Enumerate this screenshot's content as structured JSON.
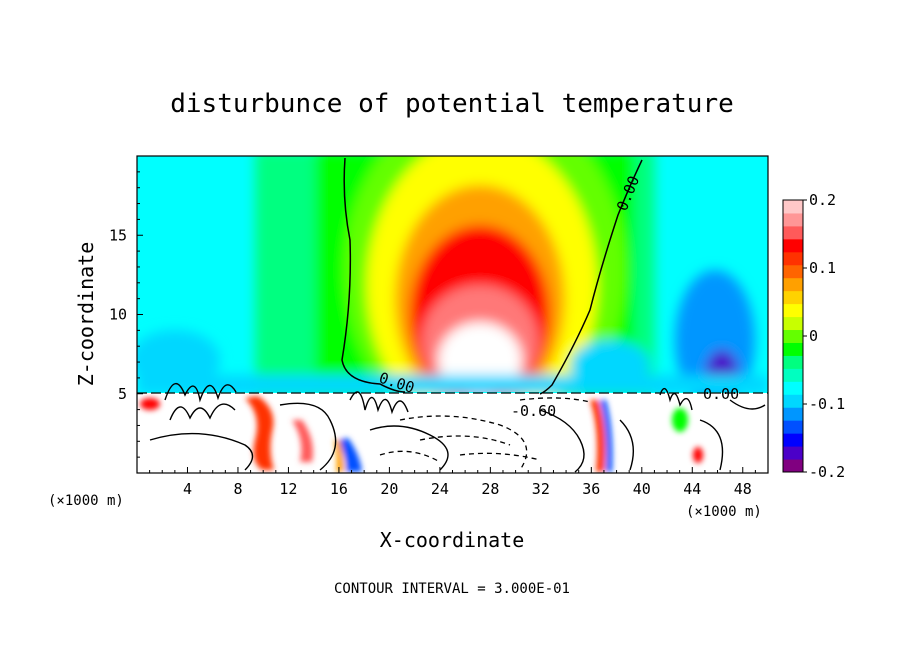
{
  "chart_data": {
    "type": "heatmap",
    "title": "disturbunce of potential temperature",
    "xlabel": "X-coordinate",
    "ylabel": "Z-coordinate",
    "x_unit": "(×1000 m)",
    "x_unit_right": "(×1000 m)",
    "xlim": [
      0,
      50
    ],
    "ylim": [
      0,
      20
    ],
    "x_ticks": [
      "4",
      "8",
      "12",
      "16",
      "20",
      "24",
      "28",
      "32",
      "36",
      "40",
      "44",
      "48"
    ],
    "y_ticks": [
      "5",
      "10",
      "15"
    ],
    "colorbar": {
      "range": [
        -0.2,
        0.2
      ],
      "ticks": [
        "0.2",
        "0.1",
        "0",
        "-0.1",
        "-0.2"
      ],
      "colors": [
        "#800080",
        "#4b00c8",
        "#0000ff",
        "#0050ff",
        "#0096ff",
        "#00d7ff",
        "#00ffff",
        "#00ffc0",
        "#00ff80",
        "#00ff00",
        "#64ff00",
        "#c8ff00",
        "#ffff00",
        "#ffd200",
        "#ffa000",
        "#ff6400",
        "#ff3200",
        "#ff0000",
        "#ff5a5a",
        "#ff9696",
        "#ffc8c8"
      ]
    },
    "contour_labels": [
      "0.00",
      "0.00",
      "0.00",
      "-0.60"
    ],
    "warm_anomaly_center": {
      "x": 28,
      "z": 7.5
    },
    "footer": "CONTOUR INTERVAL = 3.000E-01"
  }
}
